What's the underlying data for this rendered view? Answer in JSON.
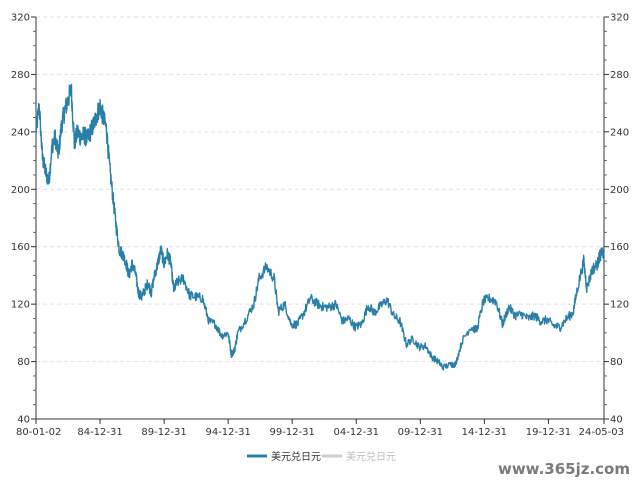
{
  "chart_data": {
    "type": "line",
    "x_tick_labels": [
      "80-01-02",
      "84-12-31",
      "89-12-31",
      "94-12-31",
      "99-12-31",
      "04-12-31",
      "09-12-31",
      "14-12-31",
      "19-12-31",
      "24-05-03"
    ],
    "ylim": [
      40,
      320
    ],
    "y_ticks": [
      40,
      80,
      120,
      160,
      200,
      240,
      280,
      320
    ],
    "grid": "horizontal dashed",
    "legend_position": "bottom-center",
    "series": [
      {
        "name": "美元兑日元",
        "color": "#2a7fa8",
        "x": [
          "1980-01",
          "1980-04",
          "1980-07",
          "1980-10",
          "1981-01",
          "1981-04",
          "1981-07",
          "1981-10",
          "1982-01",
          "1982-04",
          "1982-07",
          "1982-10",
          "1983-01",
          "1983-04",
          "1983-07",
          "1983-10",
          "1984-01",
          "1984-04",
          "1984-07",
          "1984-10",
          "1985-01",
          "1985-04",
          "1985-07",
          "1985-10",
          "1986-01",
          "1986-04",
          "1986-07",
          "1986-10",
          "1987-01",
          "1987-04",
          "1987-07",
          "1987-10",
          "1988-01",
          "1988-04",
          "1988-07",
          "1988-10",
          "1989-01",
          "1989-04",
          "1989-07",
          "1989-10",
          "1990-01",
          "1990-04",
          "1990-07",
          "1990-10",
          "1991-01",
          "1991-07",
          "1992-01",
          "1992-07",
          "1993-01",
          "1993-07",
          "1994-01",
          "1994-07",
          "1995-01",
          "1995-04",
          "1995-07",
          "1995-10",
          "1996-06",
          "1997-01",
          "1997-06",
          "1998-01",
          "1998-08",
          "1998-12",
          "1999-06",
          "1999-12",
          "2000-06",
          "2000-12",
          "2001-06",
          "2002-01",
          "2002-06",
          "2002-12",
          "2003-06",
          "2003-12",
          "2004-06",
          "2004-12",
          "2005-06",
          "2005-12",
          "2006-06",
          "2006-12",
          "2007-06",
          "2007-12",
          "2008-06",
          "2008-12",
          "2009-06",
          "2009-12",
          "2010-06",
          "2010-12",
          "2011-06",
          "2011-10",
          "2012-06",
          "2012-10",
          "2013-04",
          "2013-12",
          "2014-06",
          "2014-12",
          "2015-06",
          "2015-12",
          "2016-06",
          "2016-12",
          "2017-06",
          "2017-12",
          "2018-06",
          "2018-12",
          "2019-06",
          "2019-12",
          "2020-06",
          "2020-12",
          "2021-06",
          "2021-12",
          "2022-04",
          "2022-10",
          "2023-01",
          "2023-06",
          "2023-11",
          "2024-01",
          "2024-05"
        ],
        "y": [
          240,
          258,
          222,
          212,
          205,
          230,
          236,
          224,
          245,
          255,
          262,
          270,
          232,
          240,
          236,
          238,
          235,
          240,
          245,
          252,
          258,
          250,
          242,
          215,
          195,
          175,
          158,
          155,
          150,
          140,
          148,
          142,
          128,
          125,
          130,
          135,
          128,
          140,
          148,
          158,
          148,
          155,
          150,
          130,
          135,
          138,
          126,
          125,
          124,
          108,
          106,
          98,
          100,
          85,
          88,
          100,
          110,
          120,
          138,
          146,
          138,
          115,
          120,
          106,
          106,
          114,
          124,
          120,
          118,
          118,
          120,
          108,
          110,
          104,
          106,
          119,
          114,
          119,
          123,
          112,
          108,
          92,
          96,
          90,
          91,
          83,
          80,
          76,
          78,
          78,
          94,
          104,
          102,
          122,
          124,
          122,
          106,
          118,
          112,
          113,
          110,
          112,
          108,
          109,
          105,
          104,
          110,
          114,
          130,
          150,
          131,
          144,
          148,
          154,
          156
        ]
      },
      {
        "name": "美元兑日元",
        "color": "#cfcfcf"
      }
    ]
  },
  "watermark": "www.365jz.com"
}
